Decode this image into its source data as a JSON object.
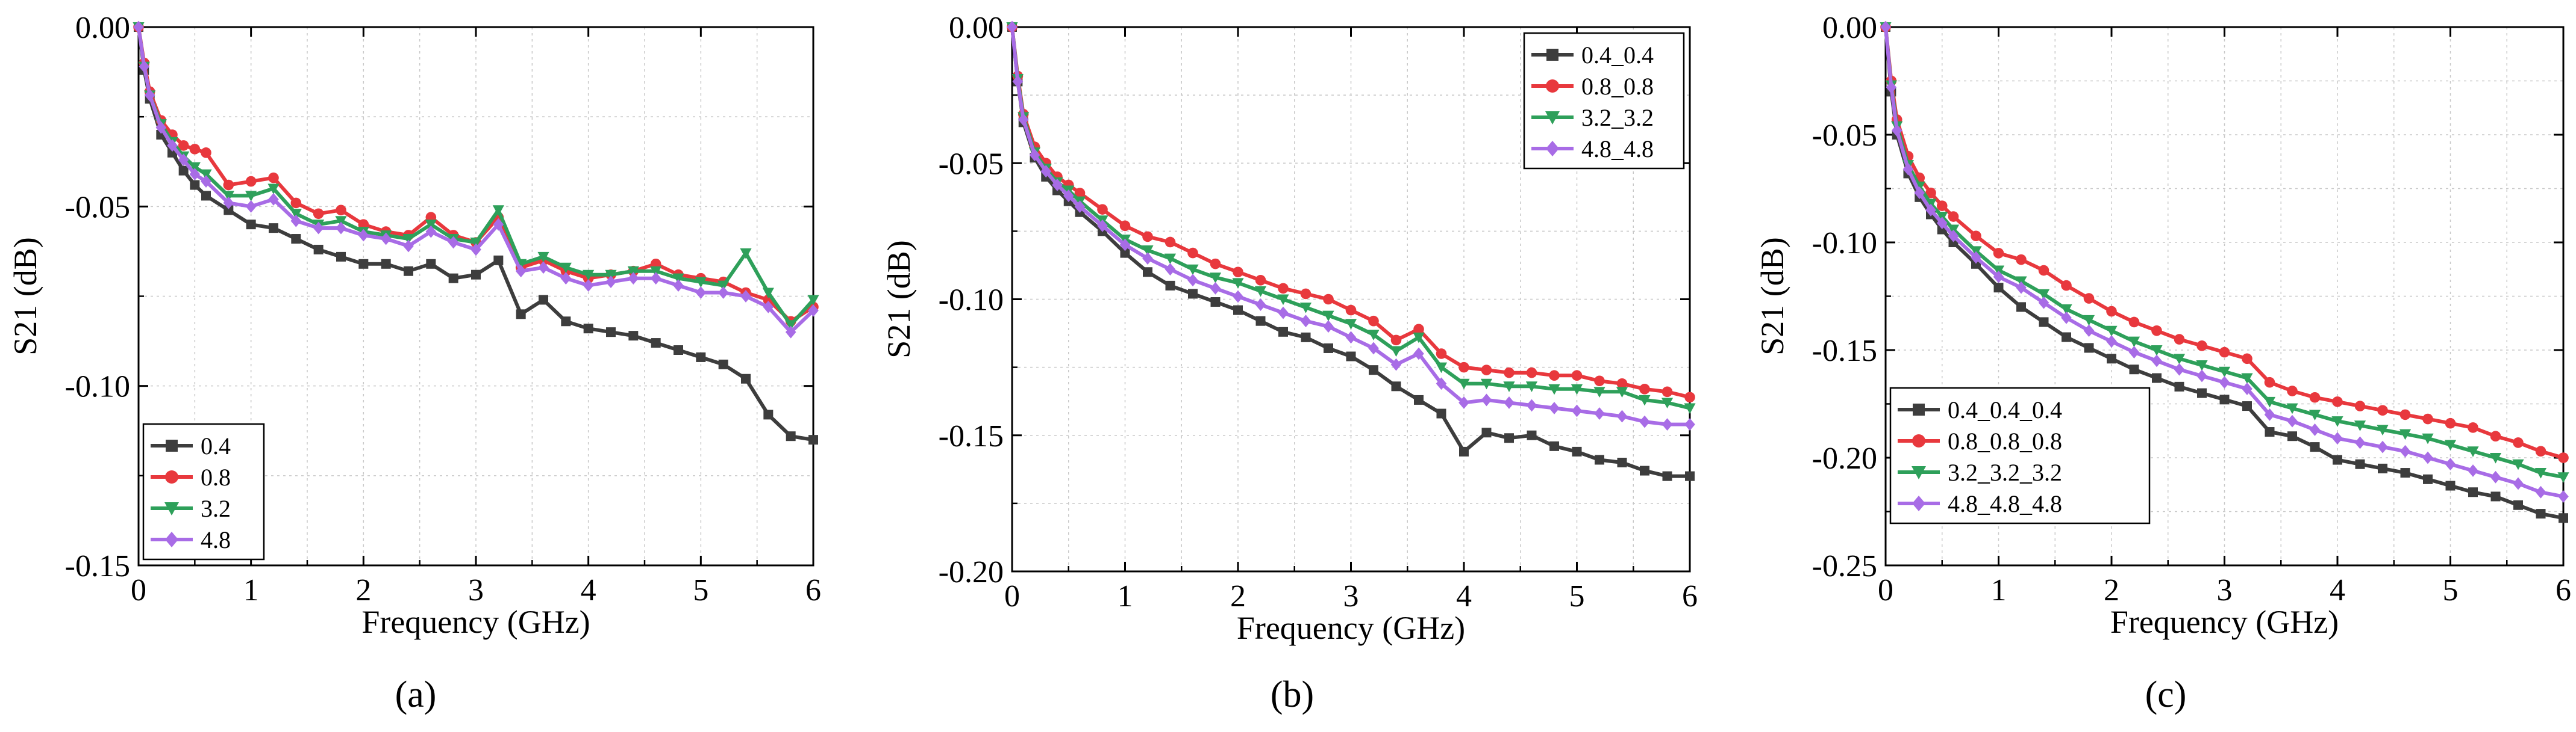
{
  "colors": {
    "black": "#3d3d3d",
    "red": "#e8383d",
    "green": "#2ea05a",
    "purple": "#a86ce6",
    "grid": "#c8c8c8"
  },
  "chart_data": [
    {
      "type": "line",
      "panel_label": "(a)",
      "xlabel": "Frequency (GHz)",
      "ylabel": "S21 (dB)",
      "xlim": [
        0,
        6
      ],
      "ylim": [
        -0.15,
        0.0
      ],
      "xticks": [
        "0",
        "1",
        "2",
        "3",
        "4",
        "5",
        "6"
      ],
      "yticks": [
        "0.00",
        "-0.05",
        "-0.10",
        "-0.15"
      ],
      "ytick_values": [
        0.0,
        -0.05,
        -0.1,
        -0.15
      ],
      "grid": true,
      "legend_position": "bottom-left",
      "series": [
        {
          "name": "0.4",
          "color": "#3d3d3d",
          "marker": "square",
          "x": [
            0,
            0.05,
            0.1,
            0.2,
            0.3,
            0.4,
            0.5,
            0.6,
            0.8,
            1.0,
            1.2,
            1.4,
            1.6,
            1.8,
            2.0,
            2.2,
            2.4,
            2.6,
            2.8,
            3.0,
            3.2,
            3.4,
            3.6,
            3.8,
            4.0,
            4.2,
            4.4,
            4.6,
            4.8,
            5.0,
            5.2,
            5.4,
            5.6,
            5.8,
            6.0
          ],
          "y": [
            0,
            -0.012,
            -0.02,
            -0.03,
            -0.035,
            -0.04,
            -0.044,
            -0.047,
            -0.051,
            -0.055,
            -0.056,
            -0.059,
            -0.062,
            -0.064,
            -0.066,
            -0.066,
            -0.068,
            -0.066,
            -0.07,
            -0.069,
            -0.065,
            -0.08,
            -0.076,
            -0.082,
            -0.084,
            -0.085,
            -0.086,
            -0.088,
            -0.09,
            -0.092,
            -0.094,
            -0.098,
            -0.108,
            -0.114,
            -0.115
          ]
        },
        {
          "name": "0.8",
          "color": "#e8383d",
          "marker": "circle",
          "x": [
            0,
            0.05,
            0.1,
            0.2,
            0.3,
            0.4,
            0.5,
            0.6,
            0.8,
            1.0,
            1.2,
            1.4,
            1.6,
            1.8,
            2.0,
            2.2,
            2.4,
            2.6,
            2.8,
            3.0,
            3.2,
            3.4,
            3.6,
            3.8,
            4.0,
            4.2,
            4.4,
            4.6,
            4.8,
            5.0,
            5.2,
            5.4,
            5.6,
            5.8,
            6.0
          ],
          "y": [
            0,
            -0.01,
            -0.018,
            -0.026,
            -0.03,
            -0.033,
            -0.034,
            -0.035,
            -0.044,
            -0.043,
            -0.042,
            -0.049,
            -0.052,
            -0.051,
            -0.055,
            -0.057,
            -0.058,
            -0.053,
            -0.058,
            -0.06,
            -0.053,
            -0.067,
            -0.065,
            -0.068,
            -0.07,
            -0.069,
            -0.068,
            -0.066,
            -0.069,
            -0.07,
            -0.071,
            -0.074,
            -0.076,
            -0.082,
            -0.078
          ]
        },
        {
          "name": "3.2",
          "color": "#2ea05a",
          "marker": "triangle-down",
          "x": [
            0,
            0.05,
            0.1,
            0.2,
            0.3,
            0.4,
            0.5,
            0.6,
            0.8,
            1.0,
            1.2,
            1.4,
            1.6,
            1.8,
            2.0,
            2.2,
            2.4,
            2.6,
            2.8,
            3.0,
            3.2,
            3.4,
            3.6,
            3.8,
            4.0,
            4.2,
            4.4,
            4.6,
            4.8,
            5.0,
            5.2,
            5.4,
            5.6,
            5.8,
            6.0
          ],
          "y": [
            0,
            -0.011,
            -0.019,
            -0.027,
            -0.032,
            -0.036,
            -0.039,
            -0.041,
            -0.047,
            -0.047,
            -0.045,
            -0.052,
            -0.055,
            -0.054,
            -0.057,
            -0.058,
            -0.059,
            -0.055,
            -0.059,
            -0.06,
            -0.051,
            -0.066,
            -0.064,
            -0.067,
            -0.069,
            -0.069,
            -0.068,
            -0.068,
            -0.07,
            -0.071,
            -0.072,
            -0.063,
            -0.074,
            -0.083,
            -0.076
          ]
        },
        {
          "name": "4.8",
          "color": "#a86ce6",
          "marker": "diamond",
          "x": [
            0,
            0.05,
            0.1,
            0.2,
            0.3,
            0.4,
            0.5,
            0.6,
            0.8,
            1.0,
            1.2,
            1.4,
            1.6,
            1.8,
            2.0,
            2.2,
            2.4,
            2.6,
            2.8,
            3.0,
            3.2,
            3.4,
            3.6,
            3.8,
            4.0,
            4.2,
            4.4,
            4.6,
            4.8,
            5.0,
            5.2,
            5.4,
            5.6,
            5.8,
            6.0
          ],
          "y": [
            0,
            -0.011,
            -0.019,
            -0.028,
            -0.033,
            -0.037,
            -0.041,
            -0.043,
            -0.049,
            -0.05,
            -0.048,
            -0.054,
            -0.056,
            -0.056,
            -0.058,
            -0.059,
            -0.061,
            -0.057,
            -0.06,
            -0.062,
            -0.055,
            -0.068,
            -0.067,
            -0.07,
            -0.072,
            -0.071,
            -0.07,
            -0.07,
            -0.072,
            -0.074,
            -0.074,
            -0.075,
            -0.078,
            -0.085,
            -0.079
          ]
        }
      ]
    },
    {
      "type": "line",
      "panel_label": "(b)",
      "xlabel": "Frequency (GHz)",
      "ylabel": "S21 (dB)",
      "xlim": [
        0,
        6
      ],
      "ylim": [
        -0.2,
        0.0
      ],
      "xticks": [
        "0",
        "1",
        "2",
        "3",
        "4",
        "5",
        "6"
      ],
      "yticks": [
        "0.00",
        "-0.05",
        "-0.10",
        "-0.15",
        "-0.20"
      ],
      "ytick_values": [
        0.0,
        -0.05,
        -0.1,
        -0.15,
        -0.2
      ],
      "grid": true,
      "legend_position": "top-right",
      "series": [
        {
          "name": "0.4_0.4",
          "color": "#3d3d3d",
          "marker": "square",
          "x": [
            0,
            0.05,
            0.1,
            0.2,
            0.3,
            0.4,
            0.5,
            0.6,
            0.8,
            1.0,
            1.2,
            1.4,
            1.6,
            1.8,
            2.0,
            2.2,
            2.4,
            2.6,
            2.8,
            3.0,
            3.2,
            3.4,
            3.6,
            3.8,
            4.0,
            4.2,
            4.4,
            4.6,
            4.8,
            5.0,
            5.2,
            5.4,
            5.6,
            5.8,
            6.0
          ],
          "y": [
            0,
            -0.02,
            -0.035,
            -0.048,
            -0.055,
            -0.06,
            -0.064,
            -0.068,
            -0.075,
            -0.083,
            -0.09,
            -0.095,
            -0.098,
            -0.101,
            -0.104,
            -0.108,
            -0.112,
            -0.114,
            -0.118,
            -0.121,
            -0.126,
            -0.132,
            -0.137,
            -0.142,
            -0.156,
            -0.149,
            -0.151,
            -0.15,
            -0.154,
            -0.156,
            -0.159,
            -0.16,
            -0.163,
            -0.165,
            -0.165
          ]
        },
        {
          "name": "0.8_0.8",
          "color": "#e8383d",
          "marker": "circle",
          "x": [
            0,
            0.05,
            0.1,
            0.2,
            0.3,
            0.4,
            0.5,
            0.6,
            0.8,
            1.0,
            1.2,
            1.4,
            1.6,
            1.8,
            2.0,
            2.2,
            2.4,
            2.6,
            2.8,
            3.0,
            3.2,
            3.4,
            3.6,
            3.8,
            4.0,
            4.2,
            4.4,
            4.6,
            4.8,
            5.0,
            5.2,
            5.4,
            5.6,
            5.8,
            6.0
          ],
          "y": [
            0,
            -0.018,
            -0.032,
            -0.044,
            -0.05,
            -0.055,
            -0.058,
            -0.061,
            -0.067,
            -0.073,
            -0.077,
            -0.079,
            -0.083,
            -0.087,
            -0.09,
            -0.093,
            -0.096,
            -0.098,
            -0.1,
            -0.104,
            -0.108,
            -0.115,
            -0.111,
            -0.12,
            -0.125,
            -0.126,
            -0.127,
            -0.127,
            -0.128,
            -0.128,
            -0.13,
            -0.131,
            -0.133,
            -0.134,
            -0.136
          ]
        },
        {
          "name": "3.2_3.2",
          "color": "#2ea05a",
          "marker": "triangle-down",
          "x": [
            0,
            0.05,
            0.1,
            0.2,
            0.3,
            0.4,
            0.5,
            0.6,
            0.8,
            1.0,
            1.2,
            1.4,
            1.6,
            1.8,
            2.0,
            2.2,
            2.4,
            2.6,
            2.8,
            3.0,
            3.2,
            3.4,
            3.6,
            3.8,
            4.0,
            4.2,
            4.4,
            4.6,
            4.8,
            5.0,
            5.2,
            5.4,
            5.6,
            5.8,
            6.0
          ],
          "y": [
            0,
            -0.019,
            -0.033,
            -0.046,
            -0.052,
            -0.057,
            -0.06,
            -0.064,
            -0.071,
            -0.078,
            -0.082,
            -0.085,
            -0.089,
            -0.092,
            -0.094,
            -0.097,
            -0.1,
            -0.103,
            -0.106,
            -0.109,
            -0.113,
            -0.119,
            -0.114,
            -0.125,
            -0.131,
            -0.131,
            -0.132,
            -0.132,
            -0.133,
            -0.133,
            -0.134,
            -0.134,
            -0.137,
            -0.138,
            -0.14
          ]
        },
        {
          "name": "4.8_4.8",
          "color": "#a86ce6",
          "marker": "diamond",
          "x": [
            0,
            0.05,
            0.1,
            0.2,
            0.3,
            0.4,
            0.5,
            0.6,
            0.8,
            1.0,
            1.2,
            1.4,
            1.6,
            1.8,
            2.0,
            2.2,
            2.4,
            2.6,
            2.8,
            3.0,
            3.2,
            3.4,
            3.6,
            3.8,
            4.0,
            4.2,
            4.4,
            4.6,
            4.8,
            5.0,
            5.2,
            5.4,
            5.6,
            5.8,
            6.0
          ],
          "y": [
            0,
            -0.02,
            -0.034,
            -0.047,
            -0.053,
            -0.058,
            -0.062,
            -0.066,
            -0.073,
            -0.08,
            -0.085,
            -0.089,
            -0.093,
            -0.096,
            -0.099,
            -0.102,
            -0.105,
            -0.108,
            -0.11,
            -0.114,
            -0.118,
            -0.124,
            -0.12,
            -0.131,
            -0.138,
            -0.137,
            -0.138,
            -0.139,
            -0.14,
            -0.141,
            -0.142,
            -0.143,
            -0.145,
            -0.146,
            -0.146
          ]
        }
      ]
    },
    {
      "type": "line",
      "panel_label": "(c)",
      "xlabel": "Frequency (GHz)",
      "ylabel": "S21 (dB)",
      "xlim": [
        0,
        6
      ],
      "ylim": [
        -0.25,
        0.0
      ],
      "xticks": [
        "0",
        "1",
        "2",
        "3",
        "4",
        "5",
        "6"
      ],
      "yticks": [
        "0.00",
        "-0.05",
        "-0.10",
        "-0.15",
        "-0.20",
        "-0.25"
      ],
      "ytick_values": [
        0.0,
        -0.05,
        -0.1,
        -0.15,
        -0.2,
        -0.25
      ],
      "grid": true,
      "legend_position": "bottom-left",
      "series": [
        {
          "name": "0.4_0.4_0.4",
          "color": "#3d3d3d",
          "marker": "square",
          "x": [
            0,
            0.05,
            0.1,
            0.2,
            0.3,
            0.4,
            0.5,
            0.6,
            0.8,
            1.0,
            1.2,
            1.4,
            1.6,
            1.8,
            2.0,
            2.2,
            2.4,
            2.6,
            2.8,
            3.0,
            3.2,
            3.4,
            3.6,
            3.8,
            4.0,
            4.2,
            4.4,
            4.6,
            4.8,
            5.0,
            5.2,
            5.4,
            5.6,
            5.8,
            6.0
          ],
          "y": [
            0,
            -0.03,
            -0.05,
            -0.068,
            -0.079,
            -0.087,
            -0.094,
            -0.1,
            -0.11,
            -0.121,
            -0.13,
            -0.137,
            -0.144,
            -0.149,
            -0.154,
            -0.159,
            -0.163,
            -0.167,
            -0.17,
            -0.173,
            -0.176,
            -0.188,
            -0.19,
            -0.195,
            -0.201,
            -0.203,
            -0.205,
            -0.207,
            -0.21,
            -0.213,
            -0.216,
            -0.218,
            -0.222,
            -0.226,
            -0.228
          ]
        },
        {
          "name": "0.8_0.8_0.8",
          "color": "#e8383d",
          "marker": "circle",
          "x": [
            0,
            0.05,
            0.1,
            0.2,
            0.3,
            0.4,
            0.5,
            0.6,
            0.8,
            1.0,
            1.2,
            1.4,
            1.6,
            1.8,
            2.0,
            2.2,
            2.4,
            2.6,
            2.8,
            3.0,
            3.2,
            3.4,
            3.6,
            3.8,
            4.0,
            4.2,
            4.4,
            4.6,
            4.8,
            5.0,
            5.2,
            5.4,
            5.6,
            5.8,
            6.0
          ],
          "y": [
            0,
            -0.025,
            -0.043,
            -0.06,
            -0.07,
            -0.077,
            -0.083,
            -0.088,
            -0.097,
            -0.105,
            -0.108,
            -0.113,
            -0.12,
            -0.126,
            -0.132,
            -0.137,
            -0.141,
            -0.145,
            -0.148,
            -0.151,
            -0.154,
            -0.165,
            -0.169,
            -0.172,
            -0.174,
            -0.176,
            -0.178,
            -0.18,
            -0.182,
            -0.184,
            -0.186,
            -0.19,
            -0.193,
            -0.197,
            -0.2
          ]
        },
        {
          "name": "3.2_3.2_3.2",
          "color": "#2ea05a",
          "marker": "triangle-down",
          "x": [
            0,
            0.05,
            0.1,
            0.2,
            0.3,
            0.4,
            0.5,
            0.6,
            0.8,
            1.0,
            1.2,
            1.4,
            1.6,
            1.8,
            2.0,
            2.2,
            2.4,
            2.6,
            2.8,
            3.0,
            3.2,
            3.4,
            3.6,
            3.8,
            4.0,
            4.2,
            4.4,
            4.6,
            4.8,
            5.0,
            5.2,
            5.4,
            5.6,
            5.8,
            6.0
          ],
          "y": [
            0,
            -0.027,
            -0.046,
            -0.064,
            -0.074,
            -0.082,
            -0.088,
            -0.094,
            -0.104,
            -0.113,
            -0.118,
            -0.124,
            -0.131,
            -0.136,
            -0.141,
            -0.146,
            -0.15,
            -0.154,
            -0.157,
            -0.16,
            -0.163,
            -0.174,
            -0.177,
            -0.18,
            -0.183,
            -0.185,
            -0.187,
            -0.189,
            -0.191,
            -0.194,
            -0.197,
            -0.2,
            -0.203,
            -0.207,
            -0.209
          ]
        },
        {
          "name": "4.8_4.8_4.8",
          "color": "#a86ce6",
          "marker": "diamond",
          "x": [
            0,
            0.05,
            0.1,
            0.2,
            0.3,
            0.4,
            0.5,
            0.6,
            0.8,
            1.0,
            1.2,
            1.4,
            1.6,
            1.8,
            2.0,
            2.2,
            2.4,
            2.6,
            2.8,
            3.0,
            3.2,
            3.4,
            3.6,
            3.8,
            4.0,
            4.2,
            4.4,
            4.6,
            4.8,
            5.0,
            5.2,
            5.4,
            5.6,
            5.8,
            6.0
          ],
          "y": [
            0,
            -0.028,
            -0.048,
            -0.066,
            -0.077,
            -0.085,
            -0.091,
            -0.097,
            -0.107,
            -0.116,
            -0.121,
            -0.128,
            -0.135,
            -0.141,
            -0.146,
            -0.151,
            -0.155,
            -0.159,
            -0.162,
            -0.165,
            -0.168,
            -0.18,
            -0.183,
            -0.187,
            -0.191,
            -0.193,
            -0.195,
            -0.197,
            -0.2,
            -0.203,
            -0.206,
            -0.209,
            -0.212,
            -0.216,
            -0.218
          ]
        }
      ]
    }
  ]
}
